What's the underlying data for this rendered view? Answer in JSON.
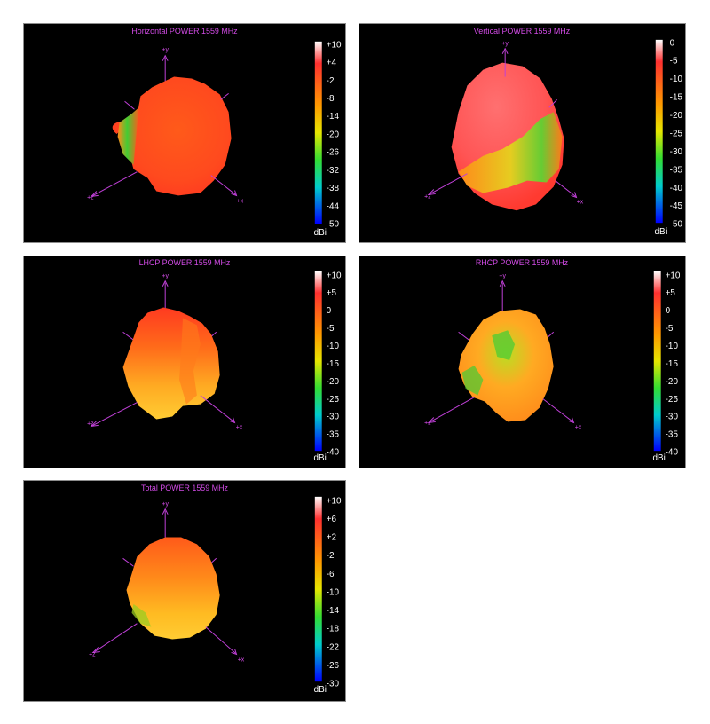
{
  "chart_data": [
    {
      "type": "other",
      "title": "Horizontal POWER 1559  MHz",
      "colorbar": {
        "unit": "dBi",
        "ticks": [
          "+10",
          "+4",
          "-2",
          "-8",
          "-14",
          "-20",
          "-26",
          "-32",
          "-38",
          "-44",
          "-50"
        ]
      },
      "axes": [
        "+y",
        "+z",
        "+x"
      ]
    },
    {
      "type": "other",
      "title": "Vertical POWER 1559  MHz",
      "colorbar": {
        "unit": "dBi",
        "ticks": [
          "0",
          "-5",
          "-10",
          "-15",
          "-20",
          "-25",
          "-30",
          "-35",
          "-40",
          "-45",
          "-50"
        ]
      },
      "axes": [
        "+y",
        "+z",
        "+x"
      ]
    },
    {
      "type": "other",
      "title": "LHCP POWER 1559  MHz",
      "colorbar": {
        "unit": "dBi",
        "ticks": [
          "+10",
          "+5",
          "0",
          "-5",
          "-10",
          "-15",
          "-20",
          "-25",
          "-30",
          "-35",
          "-40"
        ]
      },
      "axes": [
        "+y",
        "+z",
        "+x"
      ]
    },
    {
      "type": "other",
      "title": "RHCP POWER 1559  MHz",
      "colorbar": {
        "unit": "dBi",
        "ticks": [
          "+10",
          "+5",
          "0",
          "-5",
          "-10",
          "-15",
          "-20",
          "-25",
          "-30",
          "-35",
          "-40"
        ]
      },
      "axes": [
        "+y",
        "+z",
        "+x"
      ]
    },
    {
      "type": "other",
      "title": "Total POWER 1559  MHz",
      "colorbar": {
        "unit": "dBi",
        "ticks": [
          "+10",
          "+6",
          "+2",
          "-2",
          "-6",
          "-10",
          "-14",
          "-18",
          "-22",
          "-26",
          "-30"
        ]
      },
      "axes": [
        "+y",
        "+z",
        "+x"
      ]
    }
  ]
}
